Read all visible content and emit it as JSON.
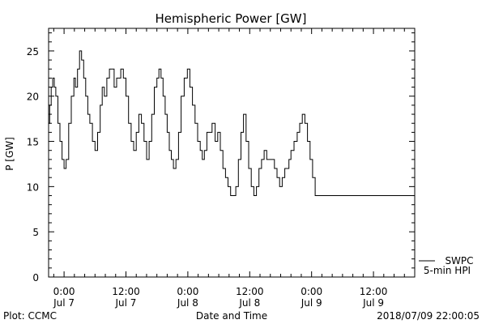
{
  "chart_data": {
    "type": "line",
    "title": "Hemispheric Power [GW]",
    "xlabel": "Date and Time",
    "ylabel": "P [GW]",
    "ylim": [
      0,
      27.5
    ],
    "yticks": [
      0,
      5,
      10,
      15,
      20,
      25
    ],
    "x_units": "hours since 2018-07-07 00:00",
    "xlim": [
      -3,
      68
    ],
    "xticks": [
      {
        "x": 0,
        "time": "0:00",
        "date": "Jul 7"
      },
      {
        "x": 12,
        "time": "12:00",
        "date": "Jul 7"
      },
      {
        "x": 24,
        "time": "0:00",
        "date": "Jul 8"
      },
      {
        "x": 36,
        "time": "12:00",
        "date": "Jul 8"
      },
      {
        "x": 48,
        "time": "0:00",
        "date": "Jul 9"
      },
      {
        "x": 60,
        "time": "12:00",
        "date": "Jul 9"
      }
    ],
    "grid": false,
    "legend": {
      "placement": "bottom-right",
      "entries": [
        "SWPC",
        "5-min HPI"
      ]
    },
    "series": [
      {
        "name": "SWPC",
        "x": [
          -3,
          -2.8,
          -2.5,
          -2.2,
          -1.9,
          -1.6,
          -1.2,
          -0.8,
          -0.4,
          0,
          0.4,
          0.9,
          1.4,
          1.9,
          2.2,
          2.6,
          3,
          3.4,
          3.8,
          4.2,
          4.6,
          5.0,
          5.5,
          6.0,
          6.5,
          7.0,
          7.4,
          7.8,
          8.3,
          8.8,
          9.2,
          9.7,
          10.2,
          10.6,
          11.0,
          11.5,
          12.0,
          12.5,
          13.0,
          13.5,
          14.0,
          14.5,
          15.0,
          15.5,
          16.0,
          16.5,
          17.0,
          17.5,
          18.0,
          18.4,
          18.8,
          19.2,
          19.6,
          20.0,
          20.4,
          20.8,
          21.2,
          21.7,
          22.2,
          22.7,
          23.3,
          23.9,
          24.4,
          24.9,
          25.4,
          25.9,
          26.4,
          26.8,
          27.2,
          27.7,
          28.2,
          28.7,
          29.3,
          29.8,
          30.3,
          30.8,
          31.3,
          31.8,
          32.3,
          32.8,
          33.3,
          33.8,
          34.3,
          34.8,
          35.3,
          35.8,
          36.3,
          36.8,
          37.3,
          37.8,
          38.3,
          38.8,
          39.3,
          39.8,
          40.3,
          40.8,
          41.3,
          41.8,
          42.3,
          42.8,
          43.2,
          43.6,
          44.0,
          44.6,
          45.2,
          45.7,
          46.2,
          46.7,
          47.2,
          47.7,
          48.2,
          48.7,
          49.2,
          49.7,
          50.2,
          50.7,
          51.2,
          51.7,
          52.2,
          52.7,
          53.2,
          53.8,
          54.3,
          54.8,
          55.3,
          55.8,
          56.3,
          56.8,
          57.3,
          57.8,
          58.3,
          58.8,
          59.3,
          59.8,
          60.3,
          60.8,
          61.3,
          61.8,
          62.3,
          62.8,
          63.3,
          63.8,
          64.3,
          64.8,
          65.3,
          65.8,
          66.3,
          66.8,
          67.3,
          67.8,
          68
        ],
        "values": [
          17,
          19,
          21,
          22,
          21,
          20,
          17,
          15,
          13,
          12,
          13,
          17,
          20,
          22,
          21,
          23,
          25,
          24,
          22,
          20,
          18,
          17,
          15,
          14,
          16,
          19,
          21,
          20,
          22,
          23,
          23,
          21,
          22,
          22,
          23,
          22,
          20,
          17,
          15,
          14,
          16,
          18,
          17,
          15,
          13,
          15,
          18,
          21,
          22,
          23,
          22,
          20,
          18,
          16,
          14,
          13,
          12,
          13,
          16,
          20,
          22,
          23,
          21,
          19,
          17,
          15,
          14,
          13,
          14,
          16,
          16,
          17,
          15,
          16,
          14,
          12,
          11,
          10,
          9,
          9,
          10,
          13,
          16,
          18,
          15,
          12,
          10,
          9,
          10,
          12,
          13,
          14,
          13,
          13,
          13,
          12,
          11,
          10,
          11,
          12,
          12,
          13,
          14,
          15,
          16,
          17,
          18,
          17,
          15,
          13,
          11,
          9,
          9,
          9,
          9,
          9,
          9,
          9,
          9,
          9,
          9,
          9,
          9,
          9,
          9,
          9,
          9,
          9,
          9,
          9,
          9,
          9,
          9,
          9,
          9,
          9,
          9,
          9,
          9,
          9,
          9,
          9,
          9,
          9,
          9,
          9,
          9,
          9,
          9,
          9,
          9
        ]
      }
    ],
    "footer": {
      "plot_source": "Plot: CCMC",
      "timestamp": "2018/07/09 22:00:05"
    }
  }
}
